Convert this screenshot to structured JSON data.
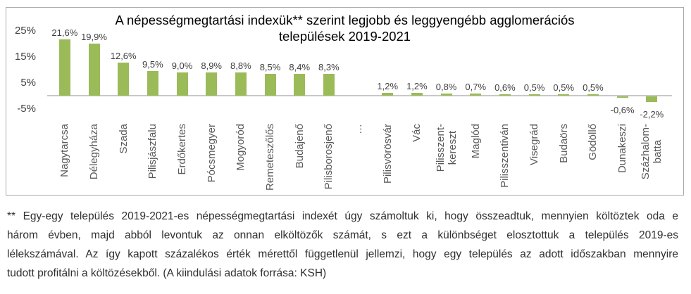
{
  "chart_data": {
    "type": "bar",
    "title": "A népességmegtartási indexük** szerint legjobb és leggyengébb agglomerációs települések 2019-2021",
    "title_lines": [
      "A népességmegtartási indexük** szerint legjobb és leggyengébb agglomerációs",
      "települések 2019-2021"
    ],
    "xlabel": "",
    "ylabel": "",
    "ylim": [
      -5,
      25
    ],
    "grid": false,
    "legend": false,
    "bar_color": "#9bbb59",
    "axis_line_color": "#c8c8c8",
    "y_ticks": [
      "25%",
      "15%",
      "5%",
      "-5%"
    ],
    "y_tick_values": [
      25,
      15,
      5,
      -5
    ],
    "categories": [
      "Nagytarcsa",
      "Délegyháza",
      "Szada",
      "Pilisjászfalu",
      "Erdőkertes",
      "Pócsmegyer",
      "Mogyoród",
      "Remeteszőlős",
      "Budajenő",
      "Pilisborosjenő",
      "Pilisvörösvár",
      "Vác",
      "Pilisszent-\nkereszt",
      "Maglód",
      "Pilisszentiván",
      "Visegrád",
      "Budaörs",
      "Gödöllő",
      "Dunakeszi",
      "Százhalom-\nbatta"
    ],
    "values": [
      21.6,
      19.9,
      12.6,
      9.5,
      9.0,
      8.9,
      8.8,
      8.5,
      8.4,
      8.3,
      1.2,
      1.2,
      0.8,
      0.7,
      0.6,
      0.5,
      0.5,
      0.5,
      -0.6,
      -2.2
    ],
    "value_labels": [
      "21,6%",
      "19,9%",
      "12,6%",
      "9,5%",
      "9,0%",
      "8,9%",
      "8,8%",
      "8,5%",
      "8,4%",
      "8,3%",
      "1,2%",
      "1,2%",
      "0,8%",
      "0,7%",
      "0,6%",
      "0,5%",
      "0,5%",
      "0,5%",
      "-0,6%",
      "-2,2%"
    ],
    "gap_after_index": 9,
    "gap_symbol": "…"
  },
  "footnote": {
    "lines": [
      "** Egy-egy település 2019-2021-es népességmegtartási indexét úgy számoltuk ki, hogy összeadtuk, mennyien költöztek oda e",
      "három évben, majd abból levontuk az onnan elköltözők számát, s ezt a különbséget elosztottuk a település 2019-es",
      "lélekszámával. Az így kapott százalékos érték mérettől függetlenül jellemzi, hogy egy település az adott időszakban mennyire",
      "tudott profitálni a költözésekből. (A kiindulási adatok forrása: KSH)"
    ]
  }
}
